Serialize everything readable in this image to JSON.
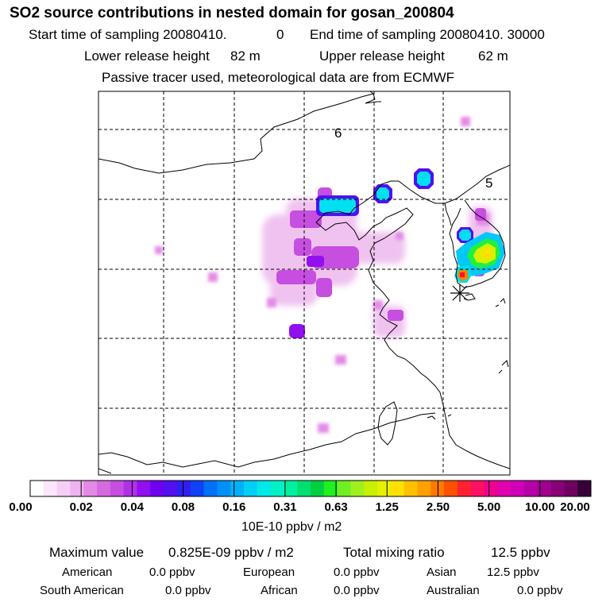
{
  "header": {
    "title": "SO2 source contributions in nested domain for gosan_200804",
    "start_label": "Start time of sampling 20080410.",
    "start_value": "0",
    "end_label": "End time of sampling 20080410. 30000",
    "lower_label": "Lower release height",
    "lower_value": "82 m",
    "upper_label": "Upper release height",
    "upper_value": "62 m",
    "note": "Passive tracer used, meteorological data are from ECMWF"
  },
  "map": {
    "region_labels": [
      "6",
      "5"
    ],
    "receptor_marker": "asterisk-icon"
  },
  "colorbar": {
    "labels": [
      "0.00",
      "0.02",
      "0.04",
      "0.08",
      "0.16",
      "0.31",
      "0.63",
      "1.25",
      "2.50",
      "5.00",
      "10.00",
      "20.00"
    ],
    "colors": [
      "#ffffff",
      "#fbe6fb",
      "#f6cff6",
      "#f0b2f0",
      "#e48ae6",
      "#d86ae0",
      "#c64ee0",
      "#b030e8",
      "#9010f0",
      "#7000f0",
      "#5010f0",
      "#3020f0",
      "#1040f8",
      "#0070f8",
      "#0090f8",
      "#00b0f8",
      "#00d0f4",
      "#00e8e8",
      "#00f0c8",
      "#00f0a0",
      "#00e070",
      "#00d040",
      "#20f020",
      "#70f020",
      "#a0f020",
      "#c8f000",
      "#e8f000",
      "#ffe000",
      "#ffc000",
      "#ffa000",
      "#ff7800",
      "#ff5000",
      "#ff2030",
      "#ff1060",
      "#f00090",
      "#e000b0",
      "#d000b8",
      "#b800a8",
      "#a00090",
      "#880078",
      "#700060",
      "#380038"
    ],
    "units": "10E-10 ppbv / m2"
  },
  "stats": {
    "max_label": "Maximum value",
    "max_value": "0.825E-09 ppbv / m2",
    "total_label": "Total mixing ratio",
    "total_value": "12.5 ppbv",
    "regions": [
      {
        "name": "American",
        "value": "0.0 ppbv"
      },
      {
        "name": "European",
        "value": "0.0 ppbv"
      },
      {
        "name": "Asian",
        "value": "12.5 ppbv"
      },
      {
        "name": "South American",
        "value": "0.0 ppbv"
      },
      {
        "name": "African",
        "value": "0.0 ppbv"
      },
      {
        "name": "Australian",
        "value": "0.0 ppbv"
      }
    ]
  }
}
